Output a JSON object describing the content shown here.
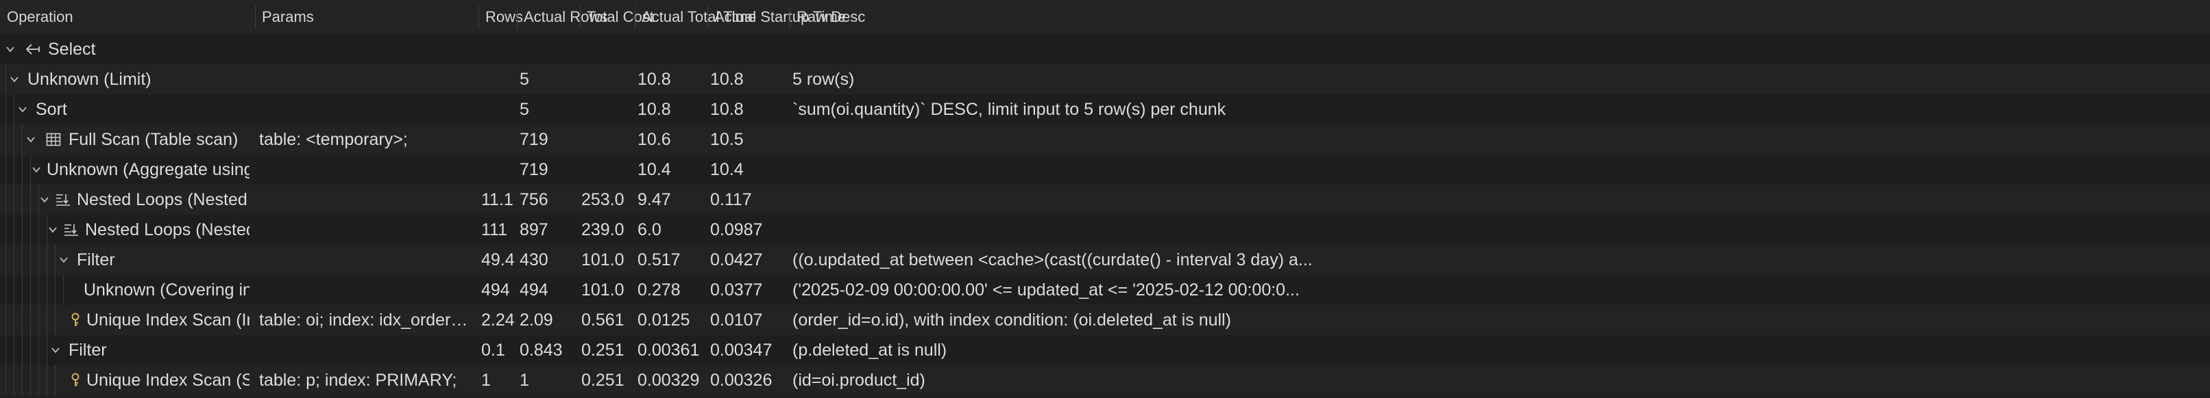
{
  "columns": {
    "operation": "Operation",
    "params": "Params",
    "rows": "Rows",
    "actual_rows": "Actual Rows",
    "total_cost": "Total Cost",
    "actual_total_time": "Actual Total Time",
    "actual_startup_time": "Actual Startup Time",
    "raw_desc": "Raw Desc"
  },
  "rows": [
    {
      "operation": "Select",
      "params": "",
      "rows": "",
      "actual_rows": "",
      "total_cost": "",
      "actual_total_time": "",
      "actual_startup_time": "",
      "raw_desc": ""
    },
    {
      "operation": "Unknown (Limit)",
      "params": "",
      "rows": "",
      "actual_rows": "5",
      "total_cost": "",
      "actual_total_time": "10.8",
      "actual_startup_time": "10.8",
      "raw_desc": "5 row(s)"
    },
    {
      "operation": "Sort",
      "params": "",
      "rows": "",
      "actual_rows": "5",
      "total_cost": "",
      "actual_total_time": "10.8",
      "actual_startup_time": "10.8",
      "raw_desc": "`sum(oi.quantity)` DESC, limit input to 5 row(s) per chunk"
    },
    {
      "operation": "Full Scan (Table scan)",
      "params": "table: <temporary>;",
      "rows": "",
      "actual_rows": "719",
      "total_cost": "",
      "actual_total_time": "10.6",
      "actual_startup_time": "10.5",
      "raw_desc": ""
    },
    {
      "operation": "Unknown (Aggregate using temporary table)",
      "params": "",
      "rows": "",
      "actual_rows": "719",
      "total_cost": "",
      "actual_total_time": "10.4",
      "actual_startup_time": "10.4",
      "raw_desc": ""
    },
    {
      "operation": "Nested Loops (Nested loop inner join)",
      "params": "",
      "rows": "11.1",
      "actual_rows": "756",
      "total_cost": "253.0",
      "actual_total_time": "9.47",
      "actual_startup_time": "0.117",
      "raw_desc": ""
    },
    {
      "operation": "Nested Loops (Nested loop inner join)",
      "params": "",
      "rows": "111",
      "actual_rows": "897",
      "total_cost": "239.0",
      "actual_total_time": "6.0",
      "actual_startup_time": "0.0987",
      "raw_desc": ""
    },
    {
      "operation": "Filter",
      "params": "",
      "rows": "49.4",
      "actual_rows": "430",
      "total_cost": "101.0",
      "actual_total_time": "0.517",
      "actual_startup_time": "0.0427",
      "raw_desc": "((o.updated_at between <cache>(cast((curdate() - interval 3 day) a..."
    },
    {
      "operation": "Unknown (Covering index range scan)",
      "params": "",
      "rows": "494",
      "actual_rows": "494",
      "total_cost": "101.0",
      "actual_total_time": "0.278",
      "actual_startup_time": "0.0377",
      "raw_desc": "('2025-02-09 00:00:00.00' <= updated_at <= '2025-02-12 00:00:0..."
    },
    {
      "operation": "Unique Index Scan (Index lookup)",
      "params": "table: oi; index: idx_order_id_product_id_deleted_at;",
      "rows": "2.24",
      "actual_rows": "2.09",
      "total_cost": "0.561",
      "actual_total_time": "0.0125",
      "actual_startup_time": "0.0107",
      "raw_desc": "(order_id=o.id), with index condition: (oi.deleted_at is null)"
    },
    {
      "operation": "Filter",
      "params": "",
      "rows": "0.1",
      "actual_rows": "0.843",
      "total_cost": "0.251",
      "actual_total_time": "0.00361",
      "actual_startup_time": "0.00347",
      "raw_desc": "(p.deleted_at is null)"
    },
    {
      "operation": "Unique Index Scan (Single-row index lookup)",
      "params": "table: p; index: PRIMARY;",
      "rows": "1",
      "actual_rows": "1",
      "total_cost": "0.251",
      "actual_total_time": "0.00329",
      "actual_startup_time": "0.00326",
      "raw_desc": "(id=oi.product_id)"
    }
  ],
  "icons": {
    "select": "arrow-left-icon",
    "table_scan": "table-icon",
    "nested_loop": "nested-loop-icon",
    "index_lookup": "key-icon"
  }
}
